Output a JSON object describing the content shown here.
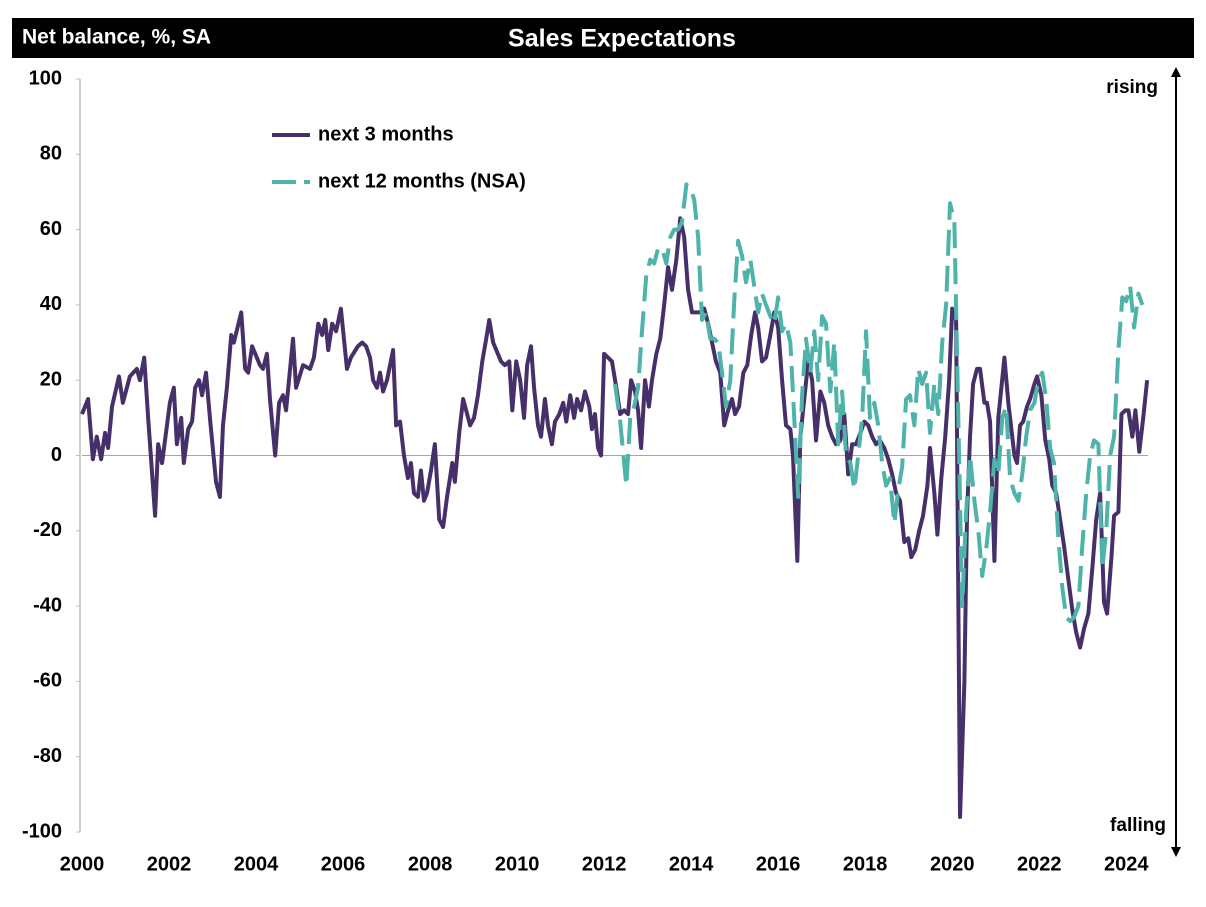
{
  "chart_data": {
    "type": "line",
    "title": "Sales Expectations",
    "ylabel": "Net balance, %, SA",
    "annotations": [
      "rising",
      "falling"
    ],
    "xlim": [
      2000,
      2024.5
    ],
    "xticks": [
      2000,
      2002,
      2004,
      2006,
      2008,
      2010,
      2012,
      2014,
      2016,
      2018,
      2020,
      2022,
      2024
    ],
    "ylim": [
      -100,
      100
    ],
    "yticks": [
      -100,
      -80,
      -60,
      -40,
      -20,
      0,
      20,
      40,
      60,
      80,
      100
    ],
    "grid": false,
    "zero_line": true,
    "legend": "upper left",
    "series": [
      {
        "name": "next 3 months",
        "color": "#47306a",
        "line_style": "solid",
        "x": [
          2000.0,
          2000.14,
          2000.25,
          2000.34,
          2000.44,
          2000.53,
          2000.6,
          2000.69,
          2000.85,
          2000.94,
          2001.1,
          2001.26,
          2001.33,
          2001.43,
          2001.52,
          2001.68,
          2001.75,
          2001.84,
          2002.02,
          2002.11,
          2002.18,
          2002.28,
          2002.34,
          2002.44,
          2002.53,
          2002.6,
          2002.69,
          2002.76,
          2002.85,
          2002.94,
          2003.08,
          2003.17,
          2003.24,
          2003.33,
          2003.43,
          2003.49,
          2003.66,
          2003.75,
          2003.82,
          2003.91,
          2004.09,
          2004.16,
          2004.25,
          2004.32,
          2004.44,
          2004.53,
          2004.62,
          2004.69,
          2004.85,
          2004.92,
          2005.08,
          2005.24,
          2005.33,
          2005.43,
          2005.52,
          2005.59,
          2005.66,
          2005.75,
          2005.84,
          2005.95,
          2006.09,
          2006.18,
          2006.34,
          2006.44,
          2006.53,
          2006.62,
          2006.69,
          2006.78,
          2006.85,
          2006.92,
          2007.01,
          2007.15,
          2007.22,
          2007.31,
          2007.4,
          2007.49,
          2007.56,
          2007.63,
          2007.72,
          2007.79,
          2007.86,
          2007.93,
          2008.02,
          2008.11,
          2008.21,
          2008.3,
          2008.39,
          2008.51,
          2008.57,
          2008.67,
          2008.76,
          2008.92,
          2009.01,
          2009.1,
          2009.2,
          2009.29,
          2009.36,
          2009.45,
          2009.63,
          2009.72,
          2009.82,
          2009.89,
          2009.98,
          2010.07,
          2010.16,
          2010.23,
          2010.32,
          2010.39,
          2010.48,
          2010.55,
          2010.64,
          2010.71,
          2010.8,
          2010.87,
          2010.97,
          2011.06,
          2011.13,
          2011.22,
          2011.31,
          2011.38,
          2011.47,
          2011.56,
          2011.66,
          2011.72,
          2011.79,
          2011.86,
          2011.93,
          2012.0,
          2012.18,
          2012.28,
          2012.37,
          2012.46,
          2012.55,
          2012.62,
          2012.71,
          2012.78,
          2012.85,
          2012.94,
          2013.03,
          2013.1,
          2013.2,
          2013.29,
          2013.38,
          2013.47,
          2013.56,
          2013.66,
          2013.75,
          2013.84,
          2013.93,
          2014.02,
          2014.21,
          2014.3,
          2014.39,
          2014.48,
          2014.57,
          2014.67,
          2014.76,
          2014.85,
          2014.94,
          2015.01,
          2015.1,
          2015.2,
          2015.29,
          2015.38,
          2015.47,
          2015.54,
          2015.63,
          2015.72,
          2015.82,
          2015.91,
          2016.0,
          2016.09,
          2016.18,
          2016.28,
          2016.34,
          2016.44,
          2016.51,
          2016.6,
          2016.69,
          2016.78,
          2016.87,
          2016.97,
          2017.06,
          2017.15,
          2017.24,
          2017.33,
          2017.43,
          2017.52,
          2017.61,
          2017.7,
          2017.79,
          2017.89,
          2017.98,
          2018.07,
          2018.16,
          2018.25,
          2018.34,
          2018.44,
          2018.53,
          2018.62,
          2018.71,
          2018.8,
          2018.9,
          2018.99,
          2019.06,
          2019.15,
          2019.24,
          2019.33,
          2019.43,
          2019.49,
          2019.59,
          2019.66,
          2019.75,
          2019.84,
          2019.93,
          2020.0,
          2020.09,
          2020.18,
          2020.28,
          2020.34,
          2020.41,
          2020.48,
          2020.57,
          2020.64,
          2020.74,
          2020.8,
          2020.87,
          2020.97,
          2021.06,
          2021.13,
          2021.2,
          2021.29,
          2021.36,
          2021.43,
          2021.49,
          2021.56,
          2021.63,
          2021.72,
          2021.79,
          2021.89,
          2021.95,
          2022.05,
          2022.14,
          2022.23,
          2022.3,
          2022.39,
          2022.48,
          2022.57,
          2022.67,
          2022.76,
          2022.85,
          2022.94,
          2023.03,
          2023.13,
          2023.22,
          2023.31,
          2023.4,
          2023.49,
          2023.56,
          2023.66,
          2023.72,
          2023.82,
          2023.89,
          2023.98,
          2024.05,
          2024.14,
          2024.21,
          2024.3,
          2024.39,
          2024.48
        ],
        "values": [
          11,
          15,
          -1,
          5,
          -1,
          6,
          2,
          13,
          21,
          14,
          21,
          23,
          20,
          26,
          10,
          -16,
          3,
          -2,
          14,
          18,
          3,
          10,
          -2,
          7,
          9,
          18,
          20,
          16,
          22,
          10,
          -7,
          -11,
          8,
          18,
          32,
          30,
          38,
          23,
          22,
          29,
          24,
          23,
          27,
          15,
          0,
          14,
          16,
          12,
          31,
          18,
          24,
          23,
          26,
          35,
          32,
          36,
          28,
          35,
          33,
          39,
          23,
          26,
          29,
          30,
          29,
          26,
          20,
          18,
          22,
          17,
          20,
          28,
          8,
          9,
          0,
          -6,
          -2,
          -10,
          -11,
          -4,
          -12,
          -10,
          -4,
          3,
          -17,
          -19,
          -11,
          -2,
          -7,
          6,
          15,
          8,
          10,
          16,
          25,
          31,
          36,
          30,
          25,
          24,
          25,
          12,
          25,
          20,
          10,
          24,
          29,
          18,
          8,
          5,
          15,
          8,
          3,
          9,
          11,
          14,
          9,
          16,
          10,
          15,
          12,
          17,
          13,
          7,
          11,
          2,
          0,
          27,
          25,
          18,
          11,
          12,
          11,
          20,
          17,
          12,
          2,
          20,
          13,
          20,
          27,
          31,
          40,
          50,
          44,
          52,
          63,
          58,
          44,
          38,
          38,
          39,
          35,
          30,
          25,
          22,
          8,
          12,
          15,
          11,
          13,
          22,
          24,
          32,
          38,
          34,
          25,
          26,
          32,
          38,
          34,
          20,
          8,
          7,
          0,
          -28,
          5,
          15,
          25,
          20,
          4,
          17,
          14,
          8,
          5,
          3,
          4,
          11,
          -5,
          3,
          3,
          6,
          9,
          8,
          5,
          3,
          4,
          2,
          -1,
          -5,
          -10,
          -12,
          -23,
          -22,
          -27,
          -25,
          -20,
          -16,
          -8,
          2,
          -10,
          -21,
          -6,
          5,
          20,
          39,
          36,
          -96,
          -60,
          -16,
          5,
          19,
          23,
          23,
          14,
          14,
          9,
          -28,
          10,
          18,
          26,
          14,
          7,
          0,
          -2,
          8,
          9,
          13,
          15,
          19,
          21,
          16,
          4,
          -1,
          -8,
          -10,
          -17,
          -24,
          -33,
          -41,
          -47,
          -51,
          -46,
          -42,
          -30,
          -17,
          -10,
          -39,
          -42,
          -27,
          -16,
          -15,
          11,
          12,
          12,
          5,
          12,
          1,
          10,
          20
        ]
      },
      {
        "name": "next 12 months (NSA)",
        "color": "#4eb3a9",
        "line_style": "dashed",
        "x": [
          2012.25,
          2012.37,
          2012.51,
          2012.6,
          2012.69,
          2012.78,
          2012.87,
          2012.97,
          2013.06,
          2013.15,
          2013.24,
          2013.33,
          2013.43,
          2013.52,
          2013.61,
          2013.7,
          2013.79,
          2013.89,
          2013.98,
          2014.07,
          2014.16,
          2014.25,
          2014.34,
          2014.44,
          2014.53,
          2014.62,
          2014.71,
          2014.8,
          2014.9,
          2014.99,
          2015.08,
          2015.17,
          2015.26,
          2015.36,
          2015.45,
          2015.54,
          2015.63,
          2015.72,
          2015.82,
          2015.91,
          2016.0,
          2016.09,
          2016.18,
          2016.28,
          2016.37,
          2016.46,
          2016.55,
          2016.64,
          2016.74,
          2016.83,
          2016.92,
          2017.01,
          2017.1,
          2017.2,
          2017.29,
          2017.38,
          2017.47,
          2017.56,
          2017.66,
          2017.75,
          2017.84,
          2017.93,
          2018.02,
          2018.11,
          2018.21,
          2018.3,
          2018.39,
          2018.48,
          2018.57,
          2018.67,
          2018.76,
          2018.85,
          2018.94,
          2019.03,
          2019.13,
          2019.22,
          2019.31,
          2019.4,
          2019.49,
          2019.59,
          2019.68,
          2019.77,
          2019.86,
          2019.95,
          2020.05,
          2020.14,
          2020.23,
          2020.32,
          2020.41,
          2020.51,
          2020.6,
          2020.69,
          2020.78,
          2020.87,
          2020.97,
          2021.06,
          2021.15,
          2021.24,
          2021.33,
          2021.43,
          2021.52,
          2021.61,
          2021.7,
          2021.79,
          2021.89,
          2021.98,
          2022.07,
          2022.16,
          2022.25,
          2022.34,
          2022.44,
          2022.53,
          2022.62,
          2022.71,
          2022.8,
          2022.9,
          2022.99,
          2023.08,
          2023.17,
          2023.26,
          2023.36,
          2023.45,
          2023.54,
          2023.63,
          2023.72,
          2023.82,
          2023.91,
          2024.0,
          2024.09,
          2024.18,
          2024.28,
          2024.37
        ],
        "values": [
          19,
          9,
          -8,
          10,
          13,
          18,
          33,
          48,
          52,
          51,
          55,
          55,
          51,
          58,
          60,
          60,
          62,
          72,
          71,
          68,
          58,
          36,
          38,
          31,
          31,
          30,
          22,
          13,
          20,
          41,
          57,
          53,
          46,
          52,
          45,
          38,
          43,
          40,
          37,
          35,
          42,
          33,
          35,
          30,
          10,
          -11,
          16,
          31,
          22,
          33,
          20,
          37,
          35,
          17,
          30,
          3,
          17,
          0,
          -2,
          -9,
          0,
          10,
          33,
          10,
          14,
          8,
          -2,
          -8,
          -6,
          -18,
          -9,
          -3,
          15,
          16,
          8,
          23,
          19,
          22,
          6,
          19,
          11,
          30,
          40,
          67,
          62,
          10,
          -40,
          -15,
          0,
          -12,
          -20,
          -32,
          -25,
          -15,
          -1,
          -5,
          10,
          13,
          -6,
          -10,
          -12,
          -5,
          5,
          12,
          14,
          20,
          22,
          15,
          2,
          -2,
          -22,
          -35,
          -43,
          -44,
          -43,
          -40,
          -24,
          -10,
          0,
          4,
          3,
          -30,
          -20,
          0,
          5,
          28,
          42,
          41,
          45,
          34,
          43,
          40
        ]
      }
    ]
  }
}
